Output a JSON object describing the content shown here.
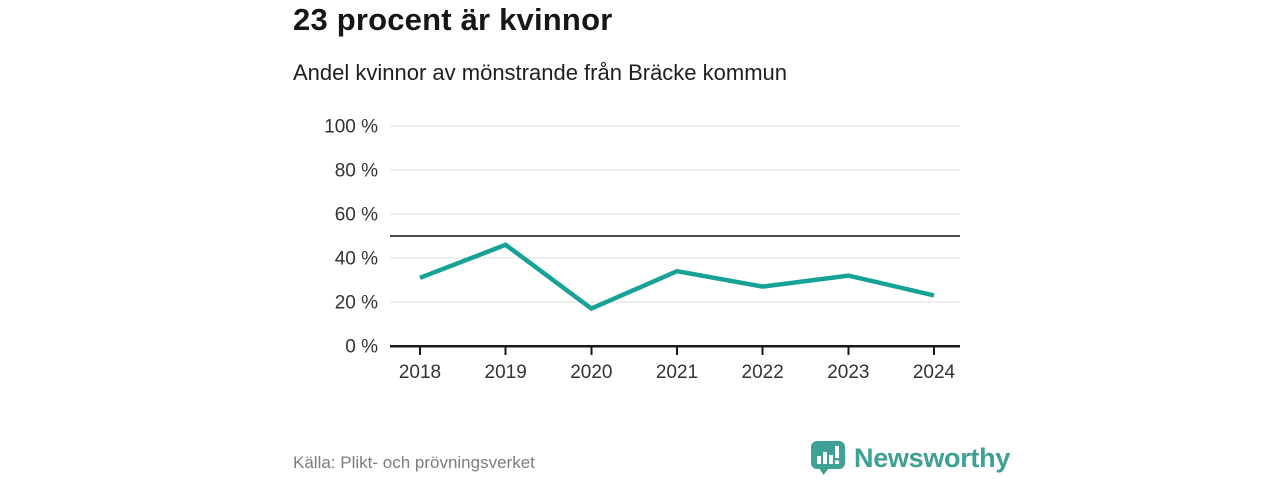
{
  "header": {
    "title": "23 procent är kvinnor",
    "subtitle": "Andel kvinnor av mönstrande från Bräcke kommun"
  },
  "chart_data": {
    "type": "line",
    "categories": [
      "2018",
      "2019",
      "2020",
      "2021",
      "2022",
      "2023",
      "2024"
    ],
    "values": [
      31,
      46,
      17,
      34,
      27,
      32,
      23
    ],
    "series_name": "Andel kvinnor av mönstrande (%)",
    "title": "23 procent är kvinnor",
    "xlabel": "",
    "ylabel": "",
    "ylim": [
      0,
      100
    ],
    "yticks": [
      0,
      20,
      40,
      60,
      80,
      100
    ],
    "ytick_format": "{v} %",
    "reference_line": 50,
    "grid": true,
    "legend": "none",
    "line_color": "#17a296",
    "grid_color": "#dcdcdc",
    "reference_color": "#4d4d4d",
    "axis_color": "#1a1a1a",
    "tick_label_color": "#333333"
  },
  "footer": {
    "source": "Källa: Plikt- och prövningsverket",
    "brand": "Newsworthy",
    "brand_color": "#3fa096"
  }
}
